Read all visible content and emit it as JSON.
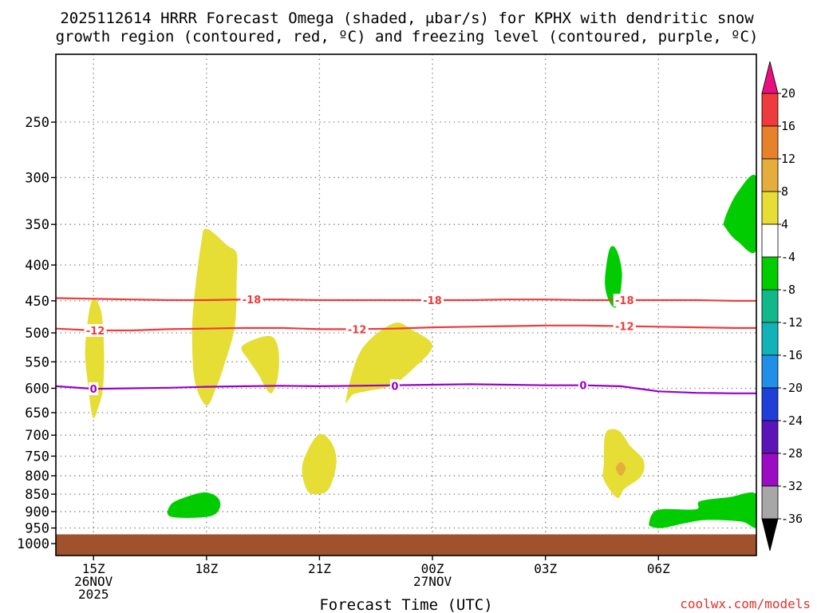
{
  "chart_data": {
    "type": "time-height",
    "title": "2025112614 HRRR Forecast Omega (shaded, μbar/s) for KPHX with dendritic snow growth region (contoured, red, ºC) and freezing level (contoured, purple, ºC)",
    "title_lines": [
      "2025112614 HRRR Forecast Omega (shaded, μbar/s) for KPHX with dendritic snow",
      "growth region (contoured, red, ºC) and freezing level (contoured, purple, ºC)"
    ],
    "xlabel": "Forecast Time (UTC)",
    "ylabel": "",
    "credit": "coolwx.com/models",
    "x_unit": "hours from 2025-11-26 14Z",
    "xlim": [
      0,
      18.6
    ],
    "ylim_hPa": [
      200,
      1040
    ],
    "y_scale": "log-pressure",
    "y_ticks": [
      250,
      300,
      350,
      400,
      450,
      500,
      550,
      600,
      650,
      700,
      750,
      800,
      850,
      900,
      950,
      1000
    ],
    "x_ticks": [
      {
        "x": 1,
        "lines": [
          "15Z",
          "26NOV",
          "2025"
        ]
      },
      {
        "x": 4,
        "lines": [
          "18Z"
        ]
      },
      {
        "x": 7,
        "lines": [
          "21Z"
        ]
      },
      {
        "x": 10,
        "lines": [
          "00Z",
          "27NOV"
        ]
      },
      {
        "x": 13,
        "lines": [
          "03Z"
        ]
      },
      {
        "x": 16,
        "lines": [
          "06Z"
        ]
      }
    ],
    "grid": true,
    "colorbar": {
      "unit": "μbar/s",
      "bins": [
        {
          "lo": 16,
          "hi": 20,
          "color": "#ee3b3b"
        },
        {
          "lo": 12,
          "hi": 16,
          "color": "#e8822a"
        },
        {
          "lo": 8,
          "hi": 12,
          "color": "#e5ad3c"
        },
        {
          "lo": 4,
          "hi": 8,
          "color": "#e6dd35"
        },
        {
          "lo": -4,
          "hi": 4,
          "color": "#ffffff"
        },
        {
          "lo": -8,
          "hi": -4,
          "color": "#00cc00"
        },
        {
          "lo": -12,
          "hi": -8,
          "color": "#10b88a"
        },
        {
          "lo": -16,
          "hi": -12,
          "color": "#12b3b8"
        },
        {
          "lo": -20,
          "hi": -16,
          "color": "#1f90e6"
        },
        {
          "lo": -24,
          "hi": -20,
          "color": "#1f3fd9"
        },
        {
          "lo": -28,
          "hi": -24,
          "color": "#5a14b8"
        },
        {
          "lo": -32,
          "hi": -28,
          "color": "#9a0bc2"
        },
        {
          "lo": -36,
          "hi": -32,
          "color": "#a7a7a7"
        }
      ],
      "over_color": "#e8107f",
      "under_color": "#000000",
      "tick_labels": [
        "20",
        "16",
        "12",
        "8",
        "4",
        "-4",
        "-8",
        "-12",
        "-16",
        "-20",
        "-24",
        "-28",
        "-32",
        "-36"
      ]
    },
    "ground": {
      "from_hPa": 970,
      "color": "#a0522d"
    },
    "shaded_regions": [
      {
        "category": "4 to 8",
        "color": "#e6dd35",
        "points": [
          [
            0.78,
            525
          ],
          [
            0.95,
            450
          ],
          [
            1.2,
            465
          ],
          [
            1.28,
            530
          ],
          [
            1.25,
            600
          ],
          [
            1.12,
            640
          ],
          [
            0.98,
            660
          ],
          [
            0.85,
            590
          ]
        ]
      },
      {
        "category": "4 to 8",
        "color": "#e6dd35",
        "points": [
          [
            3.65,
            460
          ],
          [
            3.85,
            375
          ],
          [
            4.0,
            355
          ],
          [
            4.55,
            375
          ],
          [
            4.8,
            385
          ],
          [
            4.8,
            420
          ],
          [
            4.75,
            490
          ],
          [
            4.45,
            560
          ],
          [
            4.25,
            600
          ],
          [
            4.0,
            635
          ],
          [
            3.7,
            590
          ],
          [
            3.62,
            520
          ]
        ]
      },
      {
        "category": "4 to 8",
        "color": "#e6dd35",
        "points": [
          [
            4.95,
            522
          ],
          [
            5.65,
            505
          ],
          [
            5.9,
            525
          ],
          [
            5.9,
            575
          ],
          [
            5.7,
            610
          ],
          [
            5.35,
            570
          ],
          [
            5.1,
            545
          ]
        ]
      },
      {
        "category": "4 to 8",
        "color": "#e6dd35",
        "points": [
          [
            7.7,
            625
          ],
          [
            8.1,
            530
          ],
          [
            8.95,
            485
          ],
          [
            9.45,
            495
          ],
          [
            10.0,
            522
          ],
          [
            9.45,
            565
          ],
          [
            8.9,
            595
          ],
          [
            8.3,
            605
          ],
          [
            7.9,
            612
          ]
        ]
      },
      {
        "category": "4 to 8",
        "color": "#e6dd35",
        "points": [
          [
            6.55,
            770
          ],
          [
            6.95,
            700
          ],
          [
            7.3,
            715
          ],
          [
            7.45,
            765
          ],
          [
            7.25,
            835
          ],
          [
            6.9,
            850
          ],
          [
            6.65,
            835
          ]
        ]
      },
      {
        "category": "4 to 8",
        "color": "#e6dd35",
        "points": [
          [
            14.55,
            770
          ],
          [
            14.6,
            695
          ],
          [
            14.95,
            690
          ],
          [
            15.25,
            725
          ],
          [
            15.6,
            760
          ],
          [
            15.55,
            800
          ],
          [
            15.1,
            835
          ],
          [
            14.9,
            860
          ],
          [
            14.55,
            810
          ]
        ]
      },
      {
        "category": "8 to 12",
        "color": "#e5ad3c",
        "points": [
          [
            14.87,
            780
          ],
          [
            15.0,
            765
          ],
          [
            15.13,
            780
          ],
          [
            15.0,
            800
          ]
        ]
      },
      {
        "category": "-8 to -4",
        "color": "#00cc00",
        "points": [
          [
            3.05,
            880
          ],
          [
            3.4,
            860
          ],
          [
            3.95,
            845
          ],
          [
            4.3,
            860
          ],
          [
            4.35,
            890
          ],
          [
            4.05,
            915
          ],
          [
            3.05,
            915
          ]
        ]
      },
      {
        "category": "-8 to -4",
        "color": "#00cc00",
        "points": [
          [
            14.58,
            420
          ],
          [
            14.7,
            380
          ],
          [
            14.88,
            380
          ],
          [
            15.03,
            410
          ],
          [
            14.95,
            450
          ],
          [
            14.82,
            460
          ],
          [
            14.65,
            445
          ]
        ]
      },
      {
        "category": "-8 to -4",
        "color": "#00cc00",
        "points": [
          [
            17.75,
            345
          ],
          [
            18.1,
            315
          ],
          [
            18.6,
            300
          ],
          [
            18.6,
            380
          ],
          [
            18.1,
            370
          ],
          [
            17.8,
            355
          ]
        ]
      },
      {
        "category": "-8 to -4",
        "color": "#00cc00",
        "points": [
          [
            15.75,
            935
          ],
          [
            15.85,
            905
          ],
          [
            16.1,
            893
          ],
          [
            17.0,
            893
          ],
          [
            17.1,
            870
          ],
          [
            17.9,
            858
          ],
          [
            18.6,
            850
          ],
          [
            18.6,
            945
          ],
          [
            18.2,
            930
          ],
          [
            17.3,
            925
          ],
          [
            16.7,
            935
          ],
          [
            16.1,
            950
          ],
          [
            15.8,
            945
          ]
        ]
      }
    ],
    "contours": [
      {
        "level": -18,
        "label": "-18",
        "color": "#ee3b3b",
        "points": [
          [
            0,
            446
          ],
          [
            1,
            447
          ],
          [
            2,
            448
          ],
          [
            3,
            449
          ],
          [
            4,
            449
          ],
          [
            5,
            448
          ],
          [
            6,
            448
          ],
          [
            7,
            449
          ],
          [
            8,
            449
          ],
          [
            9,
            449
          ],
          [
            10,
            449
          ],
          [
            11,
            449
          ],
          [
            12,
            448
          ],
          [
            13,
            448
          ],
          [
            14,
            449
          ],
          [
            15,
            449
          ],
          [
            16,
            449
          ],
          [
            17,
            449
          ],
          [
            18,
            450
          ],
          [
            18.6,
            450
          ]
        ],
        "label_at": [
          [
            5.2,
            448
          ],
          [
            10.0,
            449
          ],
          [
            15.1,
            449
          ]
        ]
      },
      {
        "level": -12,
        "label": "-12",
        "color": "#ee3b3b",
        "points": [
          [
            0,
            493
          ],
          [
            1,
            496
          ],
          [
            2,
            496
          ],
          [
            3,
            494
          ],
          [
            4,
            493
          ],
          [
            5,
            492
          ],
          [
            6,
            492
          ],
          [
            7,
            494
          ],
          [
            8,
            494
          ],
          [
            9,
            493
          ],
          [
            10,
            491
          ],
          [
            11,
            490
          ],
          [
            12,
            489
          ],
          [
            13,
            488
          ],
          [
            14,
            488
          ],
          [
            15,
            489
          ],
          [
            16,
            490
          ],
          [
            17,
            491
          ],
          [
            18,
            492
          ],
          [
            18.6,
            492
          ]
        ],
        "label_at": [
          [
            1.05,
            496
          ],
          [
            8.0,
            494
          ],
          [
            15.1,
            489
          ]
        ]
      },
      {
        "level": 0,
        "label": "0",
        "color": "#9a00c8",
        "points": [
          [
            0,
            596
          ],
          [
            1,
            601
          ],
          [
            2,
            600
          ],
          [
            3,
            599
          ],
          [
            4,
            597
          ],
          [
            5,
            596
          ],
          [
            6,
            595
          ],
          [
            7,
            596
          ],
          [
            8,
            595
          ],
          [
            9,
            594
          ],
          [
            10,
            593
          ],
          [
            11,
            592
          ],
          [
            12,
            593
          ],
          [
            13,
            594
          ],
          [
            14,
            594
          ],
          [
            15,
            596
          ],
          [
            16,
            606
          ],
          [
            17,
            609
          ],
          [
            18,
            610
          ],
          [
            18.6,
            610
          ]
        ],
        "label_at": [
          [
            1.0,
            601
          ],
          [
            9.0,
            595
          ],
          [
            14.0,
            594
          ]
        ]
      }
    ]
  }
}
